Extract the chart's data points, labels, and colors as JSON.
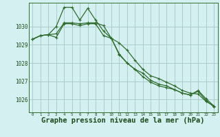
{
  "background_color": "#d5f0f0",
  "grid_color": "#aacccc",
  "line_color": "#2d6b2d",
  "xlabel": "Graphe pression niveau de la mer (hPa)",
  "xlabel_fontsize": 7.5,
  "ylim": [
    1025.3,
    1031.3
  ],
  "xlim": [
    -0.5,
    23.5
  ],
  "yticks": [
    1026,
    1027,
    1028,
    1029,
    1030
  ],
  "xticks": [
    0,
    1,
    2,
    3,
    4,
    5,
    6,
    7,
    8,
    9,
    10,
    11,
    12,
    13,
    14,
    15,
    16,
    17,
    18,
    19,
    20,
    21,
    22,
    23
  ],
  "series1": [
    1029.3,
    1029.5,
    1029.55,
    1029.6,
    1030.2,
    1030.2,
    1030.15,
    1030.2,
    1030.2,
    1030.05,
    1029.35,
    1029.1,
    1028.7,
    1028.15,
    1027.65,
    1027.3,
    1027.15,
    1026.95,
    1026.75,
    1026.5,
    1026.35,
    1026.3,
    1025.9,
    1025.65
  ],
  "series2": [
    1029.3,
    1029.5,
    1029.55,
    1030.0,
    1031.05,
    1031.05,
    1030.35,
    1031.0,
    1030.35,
    1029.75,
    1029.35,
    1028.5,
    1028.0,
    1027.65,
    1027.25,
    1026.95,
    1026.75,
    1026.65,
    1026.55,
    1026.35,
    1026.25,
    1026.5,
    1026.05,
    1025.65
  ],
  "series3": [
    1029.3,
    1029.5,
    1029.55,
    1029.4,
    1030.15,
    1030.15,
    1030.05,
    1030.15,
    1030.15,
    1029.5,
    1029.35,
    1028.45,
    1028.0,
    1027.65,
    1027.45,
    1027.05,
    1026.85,
    1026.75,
    1026.55,
    1026.35,
    1026.25,
    1026.45,
    1025.95,
    1025.6
  ]
}
